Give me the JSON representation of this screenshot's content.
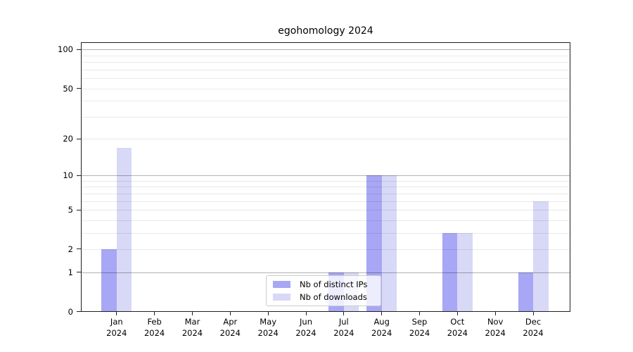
{
  "title": "egohomology 2024",
  "chart_data": {
    "type": "bar",
    "title": "egohomology 2024",
    "categories": [
      "Jan 2024",
      "Feb 2024",
      "Mar 2024",
      "Apr 2024",
      "May 2024",
      "Jun 2024",
      "Jul 2024",
      "Aug 2024",
      "Sep 2024",
      "Oct 2024",
      "Nov 2024",
      "Dec 2024"
    ],
    "x_tick_lines": {
      "months": [
        "Jan",
        "Feb",
        "Mar",
        "Apr",
        "May",
        "Jun",
        "Jul",
        "Aug",
        "Sep",
        "Oct",
        "Nov",
        "Dec"
      ],
      "year": "2024"
    },
    "series": [
      {
        "name": "Nb of distinct IPs",
        "color": "#a7a7f5",
        "values": [
          2,
          0,
          0,
          0,
          0,
          0,
          1,
          10,
          0,
          3,
          0,
          1
        ]
      },
      {
        "name": "Nb of downloads",
        "color": "#d8d8f7",
        "values": [
          17,
          0,
          0,
          0,
          0,
          0,
          1,
          10,
          0,
          3,
          0,
          6
        ]
      }
    ],
    "xlabel": "",
    "ylabel": "",
    "yscale": "log10(1+y)",
    "ylim": [
      0,
      113
    ],
    "yticks": [
      0,
      1,
      2,
      5,
      10,
      20,
      50,
      100
    ],
    "major_gridlines": [
      1,
      10,
      100
    ],
    "minor_gridlines": [
      2,
      3,
      4,
      5,
      6,
      7,
      8,
      9,
      20,
      30,
      40,
      50,
      60,
      70,
      80,
      90
    ],
    "grid": "on",
    "legend_position": "lower center inside plot"
  },
  "legend": {
    "items": [
      {
        "label": "Nb of distinct IPs"
      },
      {
        "label": "Nb of downloads"
      }
    ]
  },
  "colors": {
    "bar_distinct_ips": "#a7a7f5",
    "bar_downloads": "#d8d8f7",
    "major_grid": "#b3b3b3",
    "minor_grid": "#e9e9e9",
    "spine": "#1f1f1f",
    "background": "#ffffff"
  }
}
